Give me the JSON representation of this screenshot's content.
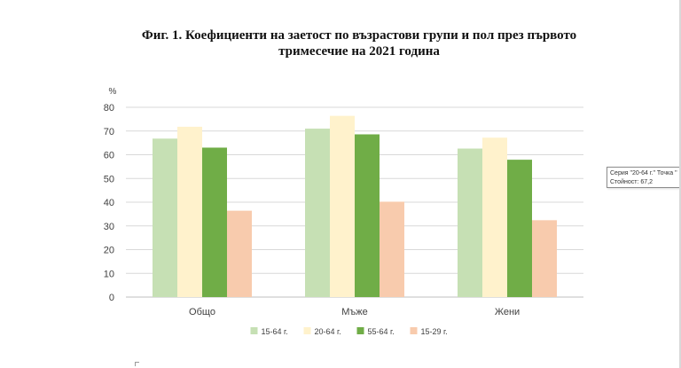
{
  "chart_data": {
    "type": "bar",
    "title_line1": "Фиг. 1. Коефициенти на заетост по възрастови групи и пол през първото",
    "title_line2": "тримесечие на 2021 година",
    "ylabel": "%",
    "ylim": [
      0,
      80
    ],
    "yticks": [
      0,
      10,
      20,
      30,
      40,
      50,
      60,
      70,
      80
    ],
    "grid": true,
    "legend_position": "bottom",
    "categories": [
      "Общо",
      "Мъже",
      "Жени"
    ],
    "series": [
      {
        "name": "15-64 г.",
        "color": "#c6e0b4",
        "values": [
          66.8,
          71.0,
          62.6
        ]
      },
      {
        "name": "20-64 г.",
        "color": "#fff2cc",
        "values": [
          71.8,
          76.4,
          67.2
        ]
      },
      {
        "name": "55-64 г.",
        "color": "#70ad47",
        "values": [
          63.0,
          68.6,
          57.9
        ]
      },
      {
        "name": "15-29 г.",
        "color": "#f8cbad",
        "values": [
          36.4,
          40.2,
          32.4
        ]
      }
    ]
  },
  "tooltip": {
    "line1": "Серия \"20-64 г.\" Точка \"",
    "line2": "Стойност: 67,2"
  }
}
